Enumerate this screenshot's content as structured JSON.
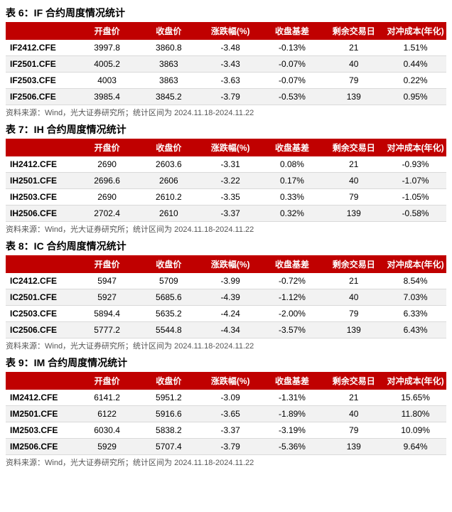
{
  "colors": {
    "header_bg": "#c00000",
    "header_text": "#ffffff",
    "row_alt_bg": "#f2f2f2",
    "row_border": "#d9d9d9",
    "source_text": "#555555",
    "body_text": "#000000"
  },
  "columns": [
    "开盘价",
    "收盘价",
    "涨跌幅(%)",
    "收盘基差",
    "剩余交易日",
    "对冲成本(年化)"
  ],
  "source_text": "资料来源：Wind，光大证券研究所；统计区间为 2024.11.18-2024.11.22",
  "tables": [
    {
      "title": "表 6：IF 合约周度情况统计",
      "rows": [
        {
          "contract": "IF2412.CFE",
          "open": "3997.8",
          "close": "3860.8",
          "chg": "-3.48",
          "basis": "-0.13%",
          "days": "21",
          "cost": "1.51%"
        },
        {
          "contract": "IF2501.CFE",
          "open": "4005.2",
          "close": "3863",
          "chg": "-3.43",
          "basis": "-0.07%",
          "days": "40",
          "cost": "0.44%"
        },
        {
          "contract": "IF2503.CFE",
          "open": "4003",
          "close": "3863",
          "chg": "-3.63",
          "basis": "-0.07%",
          "days": "79",
          "cost": "0.22%"
        },
        {
          "contract": "IF2506.CFE",
          "open": "3985.4",
          "close": "3845.2",
          "chg": "-3.79",
          "basis": "-0.53%",
          "days": "139",
          "cost": "0.95%"
        }
      ]
    },
    {
      "title": "表 7：IH 合约周度情况统计",
      "rows": [
        {
          "contract": "IH2412.CFE",
          "open": "2690",
          "close": "2603.6",
          "chg": "-3.31",
          "basis": "0.08%",
          "days": "21",
          "cost": "-0.93%"
        },
        {
          "contract": "IH2501.CFE",
          "open": "2696.6",
          "close": "2606",
          "chg": "-3.22",
          "basis": "0.17%",
          "days": "40",
          "cost": "-1.07%"
        },
        {
          "contract": "IH2503.CFE",
          "open": "2690",
          "close": "2610.2",
          "chg": "-3.35",
          "basis": "0.33%",
          "days": "79",
          "cost": "-1.05%"
        },
        {
          "contract": "IH2506.CFE",
          "open": "2702.4",
          "close": "2610",
          "chg": "-3.37",
          "basis": "0.32%",
          "days": "139",
          "cost": "-0.58%"
        }
      ]
    },
    {
      "title": "表 8：IC 合约周度情况统计",
      "rows": [
        {
          "contract": "IC2412.CFE",
          "open": "5947",
          "close": "5709",
          "chg": "-3.99",
          "basis": "-0.72%",
          "days": "21",
          "cost": "8.54%"
        },
        {
          "contract": "IC2501.CFE",
          "open": "5927",
          "close": "5685.6",
          "chg": "-4.39",
          "basis": "-1.12%",
          "days": "40",
          "cost": "7.03%"
        },
        {
          "contract": "IC2503.CFE",
          "open": "5894.4",
          "close": "5635.2",
          "chg": "-4.24",
          "basis": "-2.00%",
          "days": "79",
          "cost": "6.33%"
        },
        {
          "contract": "IC2506.CFE",
          "open": "5777.2",
          "close": "5544.8",
          "chg": "-4.34",
          "basis": "-3.57%",
          "days": "139",
          "cost": "6.43%"
        }
      ]
    },
    {
      "title": "表 9：IM 合约周度情况统计",
      "rows": [
        {
          "contract": "IM2412.CFE",
          "open": "6141.2",
          "close": "5951.2",
          "chg": "-3.09",
          "basis": "-1.31%",
          "days": "21",
          "cost": "15.65%"
        },
        {
          "contract": "IM2501.CFE",
          "open": "6122",
          "close": "5916.6",
          "chg": "-3.65",
          "basis": "-1.89%",
          "days": "40",
          "cost": "11.80%"
        },
        {
          "contract": "IM2503.CFE",
          "open": "6030.4",
          "close": "5838.2",
          "chg": "-3.37",
          "basis": "-3.19%",
          "days": "79",
          "cost": "10.09%"
        },
        {
          "contract": "IM2506.CFE",
          "open": "5929",
          "close": "5707.4",
          "chg": "-3.79",
          "basis": "-5.36%",
          "days": "139",
          "cost": "9.64%"
        }
      ]
    }
  ]
}
